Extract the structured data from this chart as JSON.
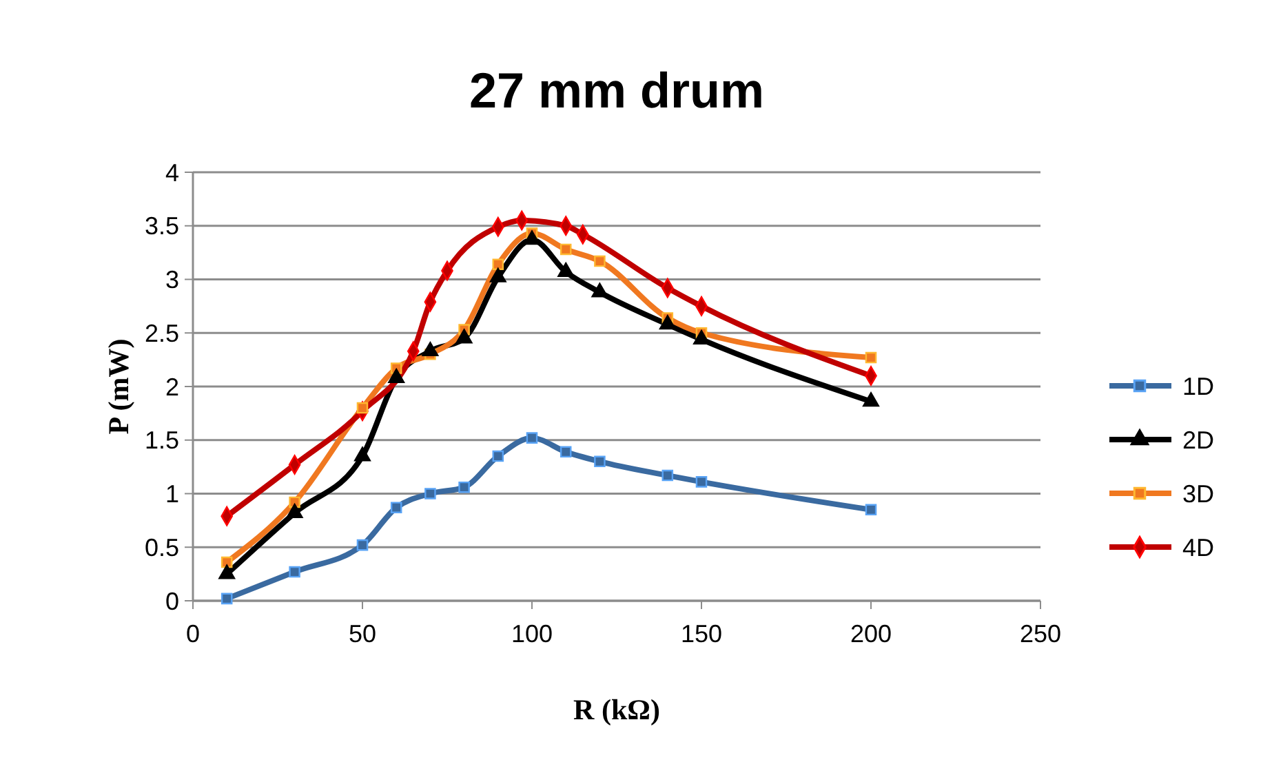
{
  "chart_data": {
    "type": "line",
    "title": "27 mm drum",
    "xlabel": "R (kΩ)",
    "ylabel": "P (mW)",
    "xlim": [
      0,
      250
    ],
    "xticks": [
      0,
      50,
      100,
      150,
      200,
      250
    ],
    "ylim": [
      0,
      4
    ],
    "yticks": [
      0,
      0.5,
      1,
      1.5,
      2,
      2.5,
      3,
      3.5,
      4
    ],
    "grid": "y",
    "legend": "right",
    "line_style": "solid",
    "x": [
      10,
      30,
      50,
      60,
      70,
      80,
      90,
      100,
      110,
      120,
      140,
      150,
      200
    ],
    "series": [
      {
        "name": "1D",
        "color": "#3a6aa0",
        "marker": "square",
        "values": [
          0.02,
          0.27,
          0.52,
          0.87,
          1.0,
          1.06,
          1.35,
          1.52,
          1.39,
          1.3,
          1.17,
          1.11,
          0.85
        ]
      },
      {
        "name": "2D",
        "color": "#000000",
        "marker": "triangle",
        "values": [
          0.25,
          0.82,
          1.35,
          2.08,
          2.33,
          2.45,
          3.02,
          3.37,
          3.07,
          2.88,
          2.58,
          2.44,
          1.86
        ]
      },
      {
        "name": "3D",
        "color": "#f07820",
        "marker": "square",
        "values": [
          0.36,
          0.92,
          1.8,
          2.17,
          2.3,
          2.53,
          3.14,
          3.43,
          3.28,
          3.17,
          2.64,
          2.5,
          2.27
        ]
      },
      {
        "name": "4D",
        "color": "#c00000",
        "marker": "diamond",
        "x": [
          10,
          30,
          50,
          65,
          70,
          75,
          90,
          97,
          110,
          115,
          140,
          150,
          200
        ],
        "values": [
          0.79,
          1.27,
          1.77,
          2.33,
          2.79,
          3.08,
          3.49,
          3.55,
          3.5,
          3.42,
          2.92,
          2.75,
          2.1
        ]
      }
    ]
  }
}
